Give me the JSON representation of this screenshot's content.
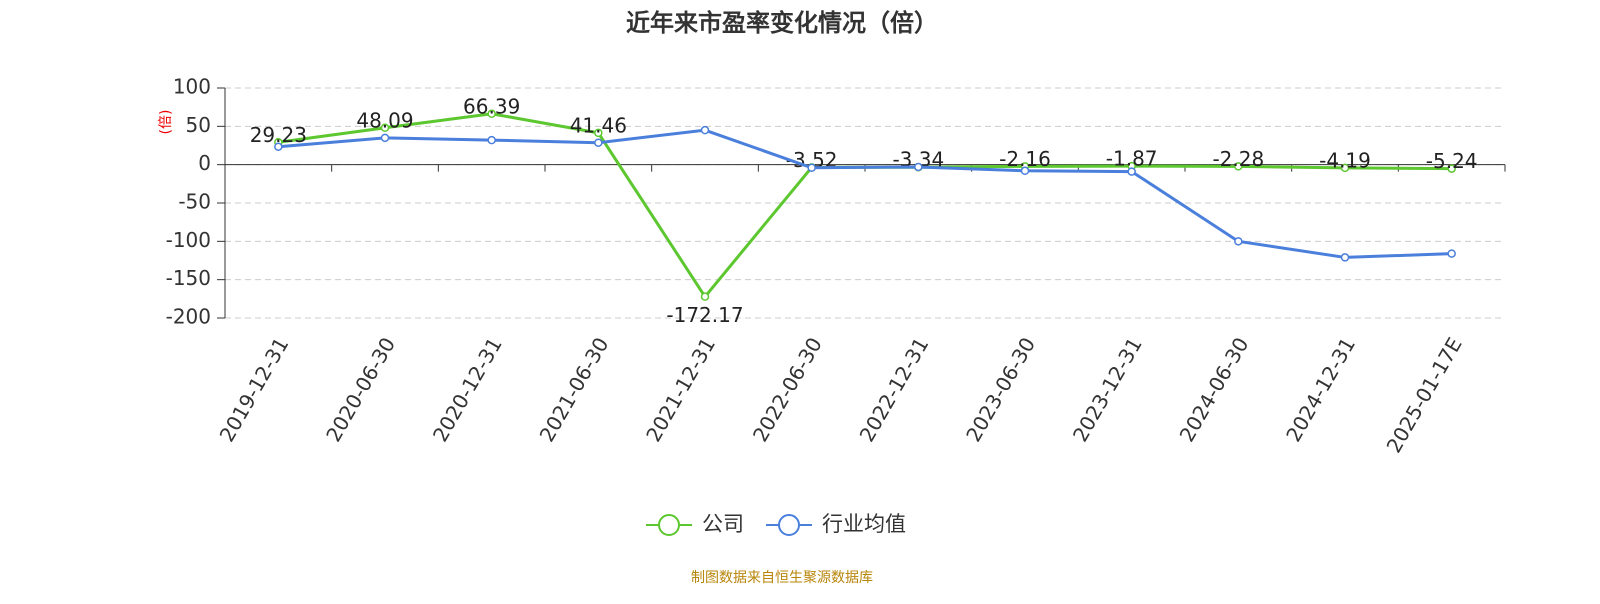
{
  "chart_data": {
    "type": "line",
    "title": "近年来市盈率变化情况（倍）",
    "y_label": "(倍)",
    "categories": [
      "2019-12-31",
      "2020-06-30",
      "2020-12-31",
      "2021-06-30",
      "2021-12-31",
      "2022-06-30",
      "2022-12-31",
      "2023-06-30",
      "2023-12-31",
      "2024-06-30",
      "2024-12-31",
      "2025-01-17E"
    ],
    "series": [
      {
        "name": "公司",
        "color": "#5cc72f",
        "values": [
          29.23,
          48.09,
          66.39,
          41.46,
          -172.17,
          -3.52,
          -3.34,
          -2.16,
          -1.87,
          -2.28,
          -4.19,
          -5.24
        ],
        "data_labels": true
      },
      {
        "name": "行业均值",
        "color": "#4a7fdc",
        "values": [
          23.4,
          35,
          32,
          28.6,
          45,
          -4,
          -3,
          -8,
          -9,
          -100,
          -121,
          -116
        ]
      }
    ],
    "ylim": [
      -200,
      100
    ],
    "yticks": [
      -200,
      -150,
      -100,
      -50,
      0,
      50,
      100
    ],
    "grid": true,
    "source": "制图数据来自恒生聚源数据库"
  }
}
